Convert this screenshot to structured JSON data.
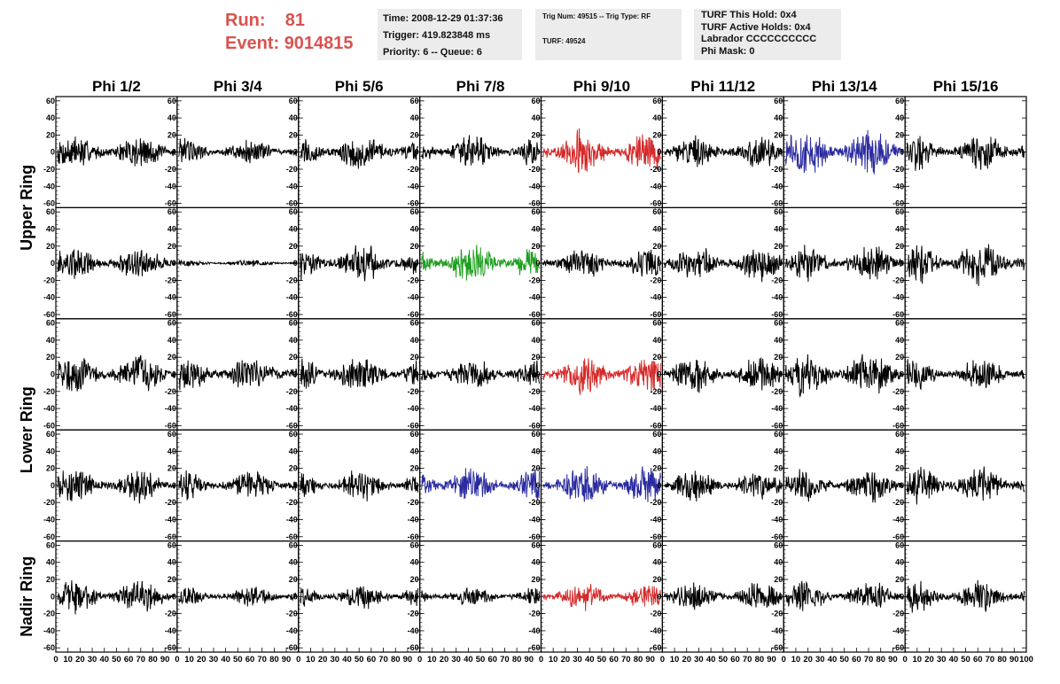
{
  "header": {
    "run_label": "Run:",
    "run_value": "81",
    "event_label": "Event:",
    "event_value": "9014815"
  },
  "info1": {
    "time": "Time: 2008-12-29 01:37:36",
    "trigger": "Trigger: 419.823848 ms",
    "priority": "Priority: 6 -- Queue: 6"
  },
  "info2": {
    "trig": "Trig Num: 49515 -- Trig Type: RF",
    "turf": "TURF: 49524"
  },
  "info3": {
    "hold": "TURF This Hold: 0x4",
    "active": "TURF Active Holds: 0x4",
    "labrador": "Labrador CCCCCCCCCC",
    "phimask": "Phi Mask: 0"
  },
  "chart_data": {
    "type": "line",
    "columns": [
      "Phi 1/2",
      "Phi 3/4",
      "Phi 5/6",
      "Phi 7/8",
      "Phi 9/10",
      "Phi 11/12",
      "Phi 13/14",
      "Phi 15/16"
    ],
    "rows": [
      "Upper Ring",
      "Lower Ring",
      "Nadir Ring"
    ],
    "y_ticks": [
      "60",
      "40",
      "20",
      "0",
      "-20",
      "-40",
      "-60"
    ],
    "ylim": [
      -65,
      65
    ],
    "xlim": [
      0,
      100
    ],
    "x_ticks": [
      "0",
      "10",
      "20",
      "30",
      "40",
      "50",
      "60",
      "70",
      "80",
      "90",
      "100"
    ],
    "colors": {
      "black": "#000000",
      "red": "#d42a2a",
      "green": "#1f9e1f",
      "blue": "#2b2ba0"
    },
    "panels": [
      {
        "row": 0,
        "col": 0,
        "color": "black",
        "amp": 16
      },
      {
        "row": 0,
        "col": 1,
        "color": "black",
        "amp": 12
      },
      {
        "row": 0,
        "col": 2,
        "color": "black",
        "amp": 17
      },
      {
        "row": 0,
        "col": 3,
        "color": "black",
        "amp": 15
      },
      {
        "row": 0,
        "col": 4,
        "color": "red",
        "amp": 20
      },
      {
        "row": 0,
        "col": 5,
        "color": "black",
        "amp": 14
      },
      {
        "row": 0,
        "col": 6,
        "color": "blue",
        "amp": 22
      },
      {
        "row": 0,
        "col": 7,
        "color": "black",
        "amp": 16
      },
      {
        "row": 1,
        "col": 0,
        "color": "black",
        "amp": 15
      },
      {
        "row": 1,
        "col": 1,
        "color": "black",
        "amp": 3
      },
      {
        "row": 1,
        "col": 2,
        "color": "black",
        "amp": 17
      },
      {
        "row": 1,
        "col": 3,
        "color": "green",
        "amp": 19
      },
      {
        "row": 1,
        "col": 4,
        "color": "black",
        "amp": 14
      },
      {
        "row": 1,
        "col": 5,
        "color": "black",
        "amp": 16
      },
      {
        "row": 1,
        "col": 6,
        "color": "black",
        "amp": 16
      },
      {
        "row": 1,
        "col": 7,
        "color": "black",
        "amp": 20
      },
      {
        "row": 2,
        "col": 0,
        "color": "black",
        "amp": 18
      },
      {
        "row": 2,
        "col": 1,
        "color": "black",
        "amp": 16
      },
      {
        "row": 2,
        "col": 2,
        "color": "black",
        "amp": 17
      },
      {
        "row": 2,
        "col": 3,
        "color": "black",
        "amp": 14
      },
      {
        "row": 2,
        "col": 4,
        "color": "red",
        "amp": 18
      },
      {
        "row": 2,
        "col": 5,
        "color": "black",
        "amp": 17
      },
      {
        "row": 2,
        "col": 6,
        "color": "black",
        "amp": 20
      },
      {
        "row": 2,
        "col": 7,
        "color": "black",
        "amp": 14
      },
      {
        "row": 3,
        "col": 0,
        "color": "black",
        "amp": 15
      },
      {
        "row": 3,
        "col": 1,
        "color": "black",
        "amp": 13
      },
      {
        "row": 3,
        "col": 2,
        "color": "black",
        "amp": 14
      },
      {
        "row": 3,
        "col": 3,
        "color": "blue",
        "amp": 17
      },
      {
        "row": 3,
        "col": 4,
        "color": "blue",
        "amp": 18
      },
      {
        "row": 3,
        "col": 5,
        "color": "black",
        "amp": 14
      },
      {
        "row": 3,
        "col": 6,
        "color": "black",
        "amp": 15
      },
      {
        "row": 3,
        "col": 7,
        "color": "black",
        "amp": 17
      },
      {
        "row": 4,
        "col": 0,
        "color": "black",
        "amp": 15
      },
      {
        "row": 4,
        "col": 1,
        "color": "black",
        "amp": 9
      },
      {
        "row": 4,
        "col": 2,
        "color": "black",
        "amp": 11
      },
      {
        "row": 4,
        "col": 3,
        "color": "black",
        "amp": 9
      },
      {
        "row": 4,
        "col": 4,
        "color": "red",
        "amp": 12
      },
      {
        "row": 4,
        "col": 5,
        "color": "black",
        "amp": 13
      },
      {
        "row": 4,
        "col": 6,
        "color": "black",
        "amp": 13
      },
      {
        "row": 4,
        "col": 7,
        "color": "black",
        "amp": 15
      }
    ]
  }
}
